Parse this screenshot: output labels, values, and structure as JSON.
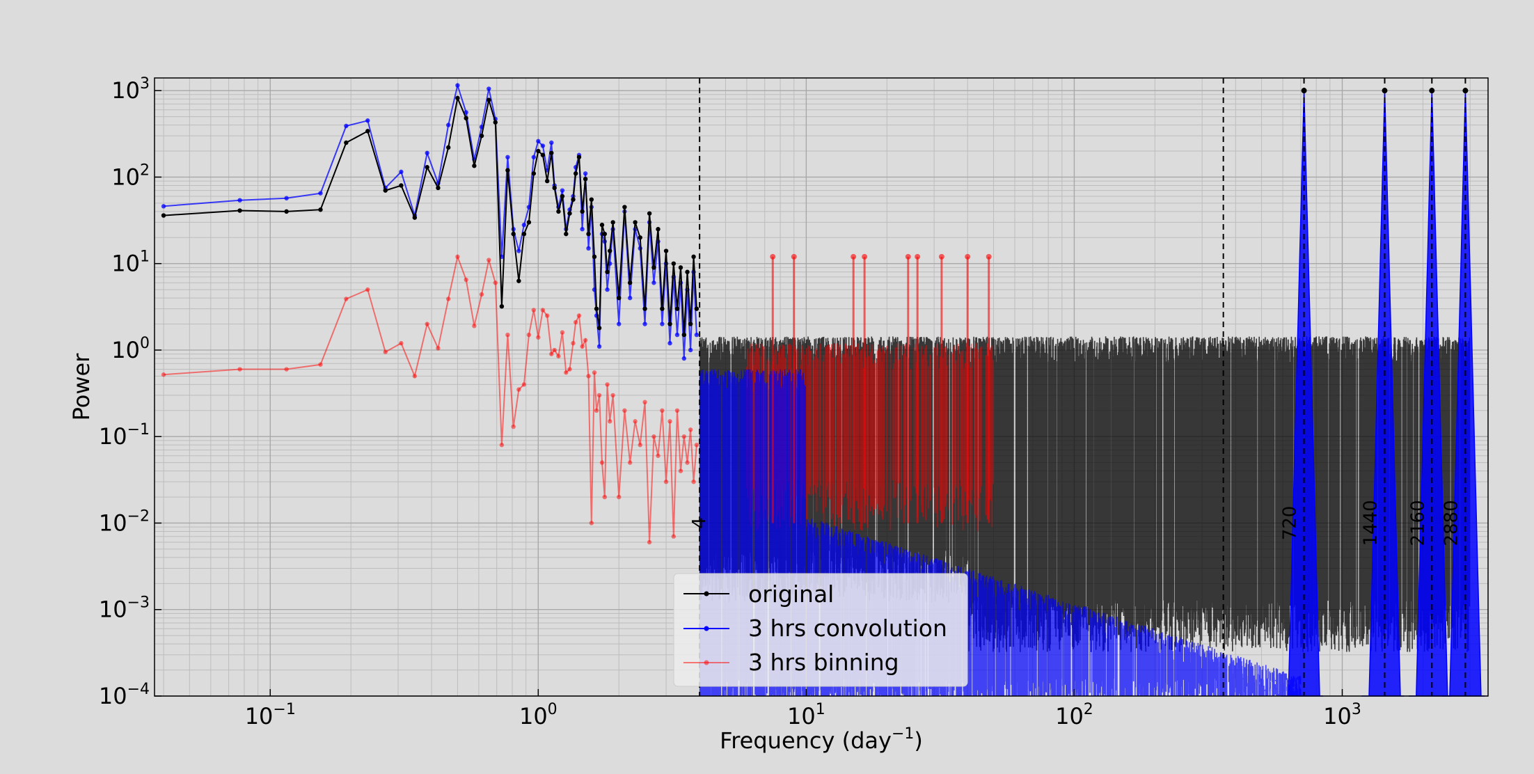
{
  "chart_data": {
    "type": "line",
    "xlabel": "Frequency (day",
    "xlabel_sup": "−1",
    "xlabel_end": ")",
    "ylabel": "Power",
    "x_scale": "log",
    "y_scale": "log",
    "xlim": [
      0.037,
      3500
    ],
    "ylim": [
      0.0001,
      1400
    ],
    "grid": true,
    "legend_position": "lower-center",
    "x_ticks": [
      {
        "value": 0.1,
        "base": "10",
        "exp": "−1"
      },
      {
        "value": 1,
        "base": "10",
        "exp": "0"
      },
      {
        "value": 10,
        "base": "10",
        "exp": "1"
      },
      {
        "value": 100,
        "base": "10",
        "exp": "2"
      },
      {
        "value": 1000,
        "base": "10",
        "exp": "3"
      }
    ],
    "y_ticks": [
      {
        "value": 1000,
        "base": "10",
        "exp": "3"
      },
      {
        "value": 100,
        "base": "10",
        "exp": "2"
      },
      {
        "value": 10,
        "base": "10",
        "exp": "1"
      },
      {
        "value": 1,
        "base": "10",
        "exp": "0"
      },
      {
        "value": 0.1,
        "base": "10",
        "exp": "−1"
      },
      {
        "value": 0.01,
        "base": "10",
        "exp": "−2"
      },
      {
        "value": 0.001,
        "base": "10",
        "exp": "−3"
      },
      {
        "value": 0.0001,
        "base": "10",
        "exp": "−4"
      }
    ],
    "vlines": [
      4,
      360,
      720,
      1440,
      2160,
      2880
    ],
    "annotations": [
      {
        "text": "4",
        "x": 4.5,
        "y": 0.01
      },
      {
        "text": "720",
        "x": 720,
        "y": 0.01
      },
      {
        "text": "1440",
        "x": 1440,
        "y": 0.01
      },
      {
        "text": "2160",
        "x": 2160,
        "y": 0.01
      },
      {
        "text": "2880",
        "x": 2880,
        "y": 0.01
      }
    ],
    "series": [
      {
        "name": "original",
        "color": "#000000",
        "x": [
          0.04,
          0.077,
          0.115,
          0.154,
          0.192,
          0.231,
          0.269,
          0.308,
          0.346,
          0.385,
          0.423,
          0.462,
          0.5,
          0.538,
          0.577,
          0.615,
          0.654,
          0.692,
          0.731,
          0.769,
          0.808,
          0.846,
          0.885,
          0.923,
          0.962,
          1.0,
          1.04,
          1.08,
          1.12,
          1.15,
          1.19,
          1.23,
          1.27,
          1.31,
          1.35,
          1.38,
          1.42,
          1.46,
          1.5,
          1.54,
          1.58,
          1.62,
          1.65,
          1.69,
          1.73,
          1.77,
          1.81,
          1.85,
          1.9,
          2.0,
          2.1,
          2.2,
          2.3,
          2.4,
          2.5,
          2.6,
          2.7,
          2.8,
          2.9,
          3.0,
          3.1,
          3.2,
          3.3,
          3.4,
          3.5,
          3.6,
          3.7,
          3.8,
          3.9
        ],
        "y": [
          36,
          41,
          40,
          42,
          250,
          340,
          70,
          80,
          34,
          130,
          75,
          220,
          820,
          480,
          135,
          300,
          780,
          430,
          3.2,
          120,
          22,
          6.3,
          22,
          30,
          110,
          200,
          180,
          90,
          190,
          75,
          40,
          60,
          22,
          38,
          55,
          110,
          170,
          40,
          95,
          22,
          55,
          12,
          3,
          1.8,
          28,
          22,
          8,
          14,
          30,
          4,
          45,
          6,
          30,
          20,
          3,
          38,
          9,
          25,
          3,
          14,
          2,
          10,
          3,
          9,
          1.5,
          8,
          2,
          12,
          3
        ]
      },
      {
        "name": "3 hrs convolution",
        "color": "#0000ff",
        "x": [
          0.04,
          0.077,
          0.115,
          0.154,
          0.192,
          0.231,
          0.269,
          0.308,
          0.346,
          0.385,
          0.423,
          0.462,
          0.5,
          0.538,
          0.577,
          0.615,
          0.654,
          0.692,
          0.731,
          0.769,
          0.808,
          0.846,
          0.885,
          0.923,
          0.962,
          1.0,
          1.04,
          1.08,
          1.12,
          1.15,
          1.19,
          1.23,
          1.27,
          1.31,
          1.35,
          1.38,
          1.42,
          1.46,
          1.5,
          1.54,
          1.58,
          1.62,
          1.65,
          1.69,
          1.73,
          1.77,
          1.81,
          1.85,
          1.9,
          2.0,
          2.1,
          2.2,
          2.3,
          2.4,
          2.5,
          2.6,
          2.7,
          2.8,
          2.9,
          3.0,
          3.1,
          3.2,
          3.3,
          3.4,
          3.5,
          3.6,
          3.7,
          3.8,
          3.9
        ],
        "y": [
          46,
          54,
          57,
          65,
          390,
          450,
          75,
          115,
          36,
          190,
          85,
          400,
          1150,
          560,
          160,
          380,
          1050,
          470,
          12,
          170,
          25,
          14,
          28,
          45,
          170,
          260,
          230,
          120,
          250,
          80,
          45,
          70,
          25,
          42,
          60,
          130,
          180,
          25,
          110,
          15,
          45,
          5,
          2.5,
          1.1,
          22,
          18,
          5,
          10,
          25,
          2,
          40,
          4,
          25,
          15,
          2,
          30,
          6,
          18,
          2,
          10,
          1.2,
          7,
          1.5,
          6,
          0.8,
          5,
          1,
          8,
          1.5
        ]
      },
      {
        "name": "3 hrs binning",
        "color": "#ff0000",
        "x": [
          0.04,
          0.077,
          0.115,
          0.154,
          0.192,
          0.231,
          0.269,
          0.308,
          0.346,
          0.385,
          0.423,
          0.462,
          0.5,
          0.538,
          0.577,
          0.615,
          0.654,
          0.692,
          0.731,
          0.769,
          0.808,
          0.846,
          0.885,
          0.923,
          0.962,
          1.0,
          1.04,
          1.08,
          1.12,
          1.15,
          1.19,
          1.23,
          1.27,
          1.31,
          1.35,
          1.38,
          1.42,
          1.46,
          1.5,
          1.54,
          1.58,
          1.62,
          1.65,
          1.69,
          1.73,
          1.77,
          1.81,
          1.85,
          1.9,
          2.0,
          2.1,
          2.2,
          2.3,
          2.4,
          2.5,
          2.6,
          2.7,
          2.8,
          2.9,
          3.0,
          3.1,
          3.2,
          3.3,
          3.4,
          3.5,
          3.6,
          3.7,
          3.8,
          3.9
        ],
        "y": [
          0.52,
          0.6,
          0.6,
          0.68,
          3.9,
          5,
          0.95,
          1.2,
          0.5,
          2,
          1.05,
          3.9,
          12,
          6.5,
          1.9,
          4.4,
          11,
          6,
          0.08,
          1.5,
          0.13,
          0.35,
          0.4,
          1.5,
          2.9,
          1.4,
          2.9,
          2.5,
          0.9,
          1,
          0.85,
          1.6,
          0.55,
          0.6,
          1.2,
          2.1,
          2.5,
          1.1,
          1.3,
          0.5,
          0.01,
          0.55,
          0.2,
          0.3,
          0.05,
          0.02,
          0.4,
          0.15,
          0.3,
          0.02,
          0.2,
          0.05,
          0.15,
          0.08,
          0.25,
          0.006,
          0.1,
          0.06,
          0.2,
          0.03,
          0.15,
          0.007,
          0.2,
          0.04,
          0.1,
          0.05,
          0.12,
          0.03,
          0.08
        ]
      }
    ]
  }
}
